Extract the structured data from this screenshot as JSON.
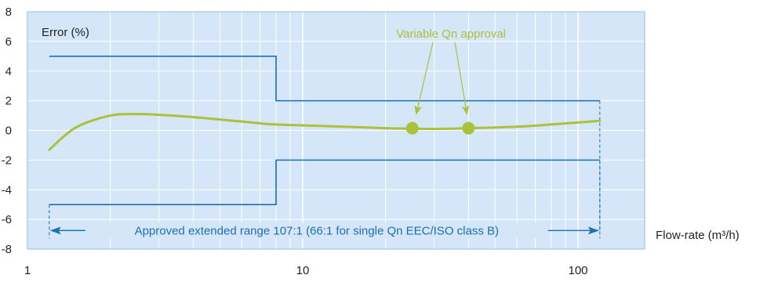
{
  "colors": {
    "plot_bg": "#d4e6f7",
    "plot_border": "#8fbde6",
    "grid": "#ffffff",
    "limit_line": "#1a6fb5",
    "curve": "#a9c23a",
    "annotation_text": "#a9c23a",
    "range_text": "#1a6fb5",
    "axis_text": "#222222"
  },
  "chart_data": {
    "type": "line",
    "title": "",
    "ylabel": "Error (%)",
    "xlabel": "Flow-rate (m³/h)",
    "x_scale": "log",
    "xlim": [
      1,
      200
    ],
    "ylim": [
      -8,
      8
    ],
    "x_ticks": [
      1,
      10,
      100
    ],
    "x_tick_labels": [
      "1",
      "10",
      "100"
    ],
    "y_ticks": [
      8,
      6,
      4,
      2,
      0,
      -2,
      -4,
      -6,
      -8
    ],
    "y_tick_labels": [
      "8",
      "6",
      "4",
      "2",
      "0",
      "-2",
      "-4",
      "-6",
      "-8"
    ],
    "grid": true,
    "series": [
      {
        "role": "upper-limit",
        "x": [
          1.2,
          8,
          8,
          120
        ],
        "y": [
          5,
          5,
          2,
          2
        ]
      },
      {
        "role": "lower-limit",
        "x": [
          1.2,
          8,
          8,
          120
        ],
        "y": [
          -5,
          -5,
          -2,
          -2
        ]
      },
      {
        "role": "error-curve",
        "x": [
          1.2,
          1.5,
          2,
          2.5,
          3,
          4,
          6,
          8,
          12,
          20,
          30,
          40,
          60,
          80,
          120
        ],
        "y": [
          -1.3,
          0.2,
          1.0,
          1.1,
          1.05,
          0.9,
          0.6,
          0.4,
          0.3,
          0.15,
          0.1,
          0.15,
          0.25,
          0.4,
          0.65
        ]
      }
    ],
    "points": [
      {
        "x": 25,
        "y": 0.15
      },
      {
        "x": 40,
        "y": 0.15
      }
    ],
    "annotations": {
      "points_label": "Variable Qn approval",
      "range_label": "Approved extended range 107:1 (66:1 for single Qn EEC/ISO class B)",
      "range_x": [
        1.2,
        120
      ],
      "range_y": -6.75
    }
  }
}
